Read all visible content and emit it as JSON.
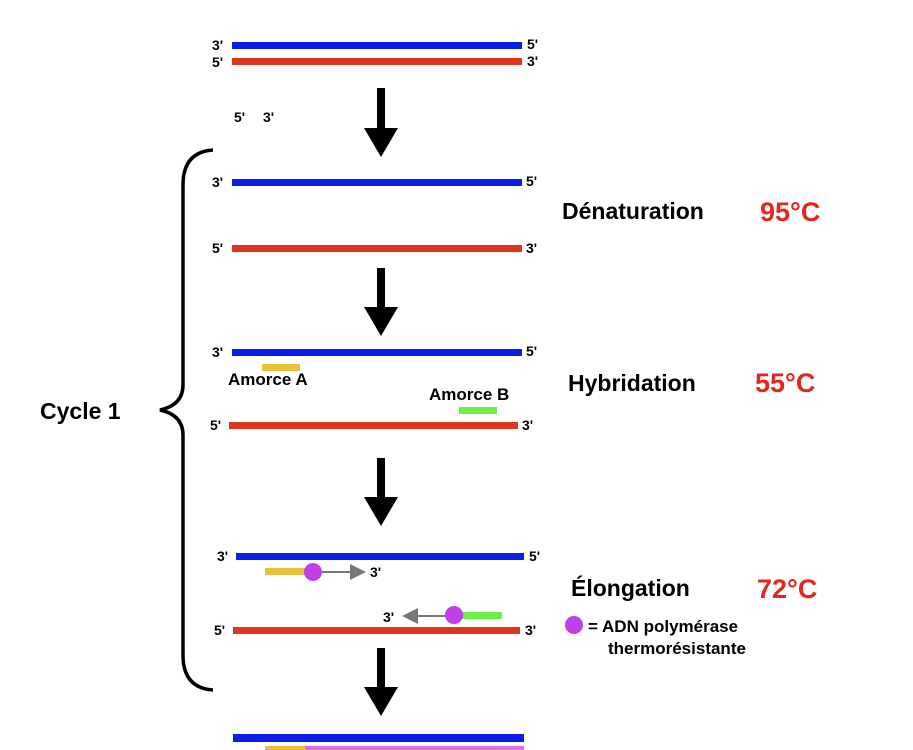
{
  "colors": {
    "template_strand": "#0a1ee6",
    "complement_strand": "#e0361e",
    "primer_a": "#e8c23c",
    "primer_b": "#6ef04a",
    "polymerase": "#c23ee8",
    "new_strand": "#e070e0",
    "temperature": "#e0281e"
  },
  "ends": {
    "three": "3'",
    "five": "5'"
  },
  "cycle_label": "Cycle 1",
  "steps": [
    {
      "name": "Dénaturation",
      "temp": "95°C"
    },
    {
      "name": "Hybridation",
      "temp": "55°C"
    },
    {
      "name": "Élongation",
      "temp": "72°C"
    }
  ],
  "primers": {
    "a": "Amorce A",
    "b": "Amorce B"
  },
  "legend": {
    "line1": "= ADN polymérase",
    "line2": "thermorésistante"
  }
}
